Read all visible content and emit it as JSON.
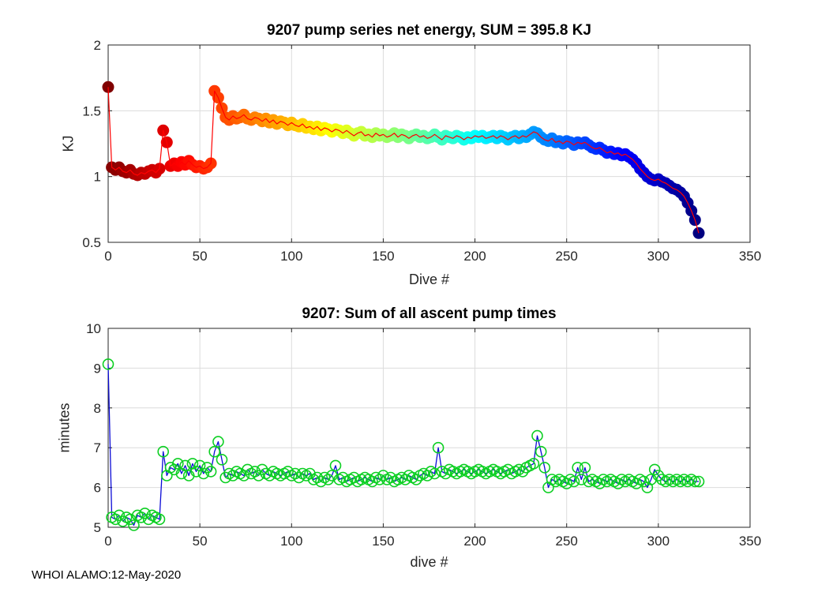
{
  "figure": {
    "footer": "WHOI ALAMO:12-May-2020",
    "background": "#ffffff",
    "axis_color": "#262626",
    "grid_color": "#dcdcdc"
  },
  "chart_data": [
    {
      "type": "scatter",
      "title": "9207 pump series net energy, SUM = 395.8 KJ",
      "xlabel": "Dive #",
      "ylabel": "KJ",
      "xlim": [
        0,
        350
      ],
      "ylim": [
        0.5,
        2
      ],
      "xticks": [
        0,
        50,
        100,
        150,
        200,
        250,
        300,
        350
      ],
      "xtick_labels": [
        "0",
        "50",
        "100",
        "150",
        "200",
        "250",
        "300",
        "350"
      ],
      "yticks": [
        0.5,
        1,
        1.5,
        2
      ],
      "ytick_labels": [
        "0.5",
        "1",
        "1.5",
        "2"
      ],
      "grid": true,
      "legend": "none",
      "line_color": "#ff0000",
      "marker_style": "filled-circle",
      "marker_colormap": "jet-reversed",
      "sum_kj": 395.8,
      "x": [
        0,
        2,
        4,
        6,
        8,
        10,
        12,
        14,
        16,
        18,
        20,
        22,
        24,
        26,
        28,
        30,
        32,
        34,
        36,
        38,
        40,
        42,
        44,
        46,
        48,
        50,
        52,
        54,
        56,
        58,
        60,
        62,
        64,
        66,
        68,
        70,
        72,
        74,
        76,
        78,
        80,
        82,
        84,
        86,
        88,
        90,
        92,
        94,
        96,
        98,
        100,
        102,
        104,
        106,
        108,
        110,
        112,
        114,
        116,
        118,
        120,
        122,
        124,
        126,
        128,
        130,
        132,
        134,
        136,
        138,
        140,
        142,
        144,
        146,
        148,
        150,
        152,
        154,
        156,
        158,
        160,
        162,
        164,
        166,
        168,
        170,
        172,
        174,
        176,
        178,
        180,
        182,
        184,
        186,
        188,
        190,
        192,
        194,
        196,
        198,
        200,
        202,
        204,
        206,
        208,
        210,
        212,
        214,
        216,
        218,
        220,
        222,
        224,
        226,
        228,
        230,
        232,
        234,
        236,
        238,
        240,
        242,
        244,
        246,
        248,
        250,
        252,
        254,
        256,
        258,
        260,
        262,
        264,
        266,
        268,
        270,
        272,
        274,
        276,
        278,
        280,
        282,
        284,
        286,
        288,
        290,
        292,
        294,
        296,
        298,
        300,
        302,
        304,
        306,
        308,
        310,
        312,
        314,
        316,
        318,
        320,
        322
      ],
      "y": [
        1.68,
        1.07,
        1.05,
        1.07,
        1.04,
        1.03,
        1.05,
        1.02,
        1.01,
        1.03,
        1.02,
        1.04,
        1.05,
        1.03,
        1.06,
        1.35,
        1.26,
        1.08,
        1.1,
        1.08,
        1.11,
        1.09,
        1.12,
        1.09,
        1.07,
        1.08,
        1.06,
        1.07,
        1.1,
        1.65,
        1.6,
        1.52,
        1.45,
        1.43,
        1.46,
        1.44,
        1.45,
        1.47,
        1.44,
        1.43,
        1.45,
        1.44,
        1.42,
        1.44,
        1.41,
        1.43,
        1.4,
        1.42,
        1.41,
        1.39,
        1.41,
        1.39,
        1.38,
        1.4,
        1.37,
        1.38,
        1.36,
        1.38,
        1.35,
        1.37,
        1.36,
        1.34,
        1.36,
        1.35,
        1.33,
        1.35,
        1.33,
        1.31,
        1.33,
        1.34,
        1.31,
        1.32,
        1.3,
        1.33,
        1.31,
        1.32,
        1.3,
        1.31,
        1.33,
        1.3,
        1.32,
        1.31,
        1.29,
        1.31,
        1.32,
        1.3,
        1.31,
        1.29,
        1.3,
        1.32,
        1.3,
        1.28,
        1.31,
        1.3,
        1.29,
        1.31,
        1.3,
        1.28,
        1.3,
        1.29,
        1.31,
        1.3,
        1.31,
        1.29,
        1.3,
        1.31,
        1.29,
        1.31,
        1.3,
        1.28,
        1.3,
        1.31,
        1.29,
        1.31,
        1.3,
        1.32,
        1.34,
        1.33,
        1.3,
        1.28,
        1.27,
        1.29,
        1.26,
        1.27,
        1.25,
        1.27,
        1.26,
        1.24,
        1.26,
        1.25,
        1.26,
        1.24,
        1.22,
        1.21,
        1.22,
        1.2,
        1.18,
        1.19,
        1.17,
        1.18,
        1.16,
        1.17,
        1.15,
        1.13,
        1.1,
        1.06,
        1.03,
        1.0,
        0.98,
        0.97,
        0.98,
        0.96,
        0.95,
        0.93,
        0.91,
        0.9,
        0.88,
        0.85,
        0.8,
        0.74,
        0.67,
        0.57
      ]
    },
    {
      "type": "line",
      "title": "9207: Sum of all ascent pump times",
      "xlabel": "dive #",
      "ylabel": "minutes",
      "xlim": [
        0,
        350
      ],
      "ylim": [
        5,
        10
      ],
      "xticks": [
        0,
        50,
        100,
        150,
        200,
        250,
        300,
        350
      ],
      "xtick_labels": [
        "0",
        "50",
        "100",
        "150",
        "200",
        "250",
        "300",
        "350"
      ],
      "yticks": [
        5,
        6,
        7,
        8,
        9,
        10
      ],
      "ytick_labels": [
        "5",
        "6",
        "7",
        "8",
        "9",
        "10"
      ],
      "grid": true,
      "legend": "none",
      "line_color": "#0b0bd6",
      "marker_style": "open-circle",
      "marker_color": "#0ccf22",
      "x": [
        0,
        2,
        4,
        6,
        8,
        10,
        12,
        14,
        16,
        18,
        20,
        22,
        24,
        26,
        28,
        30,
        32,
        34,
        36,
        38,
        40,
        42,
        44,
        46,
        48,
        50,
        52,
        54,
        56,
        58,
        60,
        62,
        64,
        66,
        68,
        70,
        72,
        74,
        76,
        78,
        80,
        82,
        84,
        86,
        88,
        90,
        92,
        94,
        96,
        98,
        100,
        102,
        104,
        106,
        108,
        110,
        112,
        114,
        116,
        118,
        120,
        122,
        124,
        126,
        128,
        130,
        132,
        134,
        136,
        138,
        140,
        142,
        144,
        146,
        148,
        150,
        152,
        154,
        156,
        158,
        160,
        162,
        164,
        166,
        168,
        170,
        172,
        174,
        176,
        178,
        180,
        182,
        184,
        186,
        188,
        190,
        192,
        194,
        196,
        198,
        200,
        202,
        204,
        206,
        208,
        210,
        212,
        214,
        216,
        218,
        220,
        222,
        224,
        226,
        228,
        230,
        232,
        234,
        236,
        238,
        240,
        242,
        244,
        246,
        248,
        250,
        252,
        254,
        256,
        258,
        260,
        262,
        264,
        266,
        268,
        270,
        272,
        274,
        276,
        278,
        280,
        282,
        284,
        286,
        288,
        290,
        292,
        294,
        296,
        298,
        300,
        302,
        304,
        306,
        308,
        310,
        312,
        314,
        316,
        318,
        320,
        322
      ],
      "y": [
        9.1,
        5.25,
        5.2,
        5.3,
        5.15,
        5.25,
        5.2,
        5.05,
        5.3,
        5.25,
        5.35,
        5.2,
        5.3,
        5.25,
        5.2,
        6.9,
        6.3,
        6.5,
        6.45,
        6.6,
        6.35,
        6.55,
        6.3,
        6.6,
        6.4,
        6.55,
        6.35,
        6.5,
        6.4,
        6.9,
        7.15,
        6.7,
        6.25,
        6.35,
        6.3,
        6.4,
        6.35,
        6.3,
        6.45,
        6.35,
        6.4,
        6.3,
        6.45,
        6.35,
        6.3,
        6.4,
        6.35,
        6.3,
        6.35,
        6.4,
        6.3,
        6.35,
        6.25,
        6.35,
        6.3,
        6.35,
        6.2,
        6.25,
        6.15,
        6.25,
        6.2,
        6.3,
        6.55,
        6.2,
        6.25,
        6.15,
        6.2,
        6.25,
        6.15,
        6.2,
        6.25,
        6.2,
        6.15,
        6.25,
        6.2,
        6.3,
        6.2,
        6.25,
        6.15,
        6.2,
        6.25,
        6.2,
        6.3,
        6.25,
        6.2,
        6.3,
        6.35,
        6.3,
        6.4,
        6.35,
        7.0,
        6.4,
        6.35,
        6.45,
        6.4,
        6.35,
        6.4,
        6.45,
        6.4,
        6.35,
        6.4,
        6.45,
        6.4,
        6.35,
        6.4,
        6.45,
        6.4,
        6.35,
        6.4,
        6.45,
        6.35,
        6.4,
        6.45,
        6.4,
        6.5,
        6.55,
        6.6,
        7.3,
        6.9,
        6.5,
        6.0,
        6.2,
        6.15,
        6.2,
        6.15,
        6.1,
        6.2,
        6.15,
        6.5,
        6.2,
        6.5,
        6.15,
        6.2,
        6.15,
        6.1,
        6.2,
        6.15,
        6.2,
        6.15,
        6.1,
        6.2,
        6.15,
        6.2,
        6.15,
        6.1,
        6.2,
        6.15,
        6.0,
        6.2,
        6.45,
        6.3,
        6.2,
        6.15,
        6.2,
        6.15,
        6.2,
        6.15,
        6.2,
        6.15,
        6.2,
        6.15,
        6.15
      ]
    }
  ]
}
